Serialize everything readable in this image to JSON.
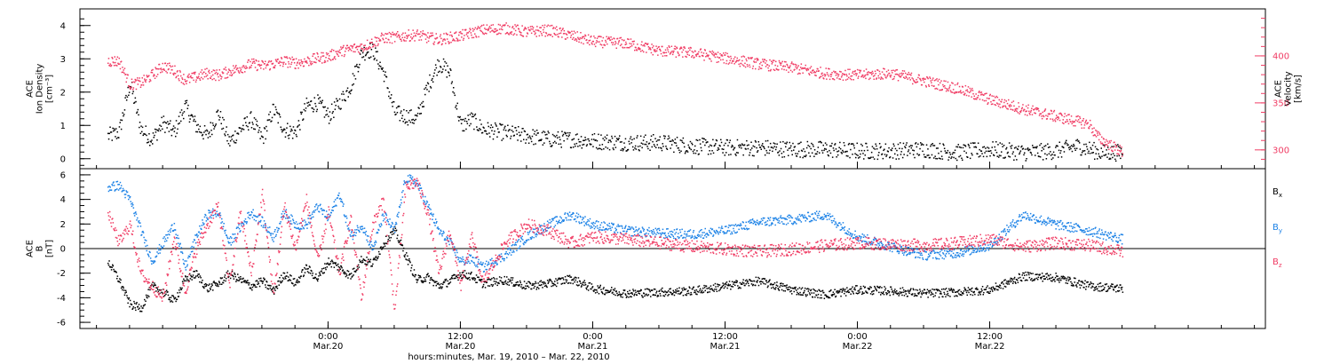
{
  "chart_data": [
    {
      "type": "scatter",
      "panel": "top",
      "ylabel_left": [
        "ACE",
        "Ion Density",
        "[cm⁻³]"
      ],
      "ylabel_right": [
        "ACE",
        "Velocity",
        "[km/s]"
      ],
      "ylim_left": [
        -0.3,
        4.5
      ],
      "ylim_right": [
        280,
        450
      ],
      "yticks_left": [
        "0",
        "1",
        "2",
        "3",
        "4"
      ],
      "yticks_right": [
        "300",
        "350",
        "400"
      ],
      "grid": false,
      "series": [
        {
          "name": "",
          "axis": "left",
          "color": "#000000",
          "x": [
            -20.0,
            -19.0,
            -18.0,
            -17.0,
            -16.0,
            -15.0,
            -14.0,
            -13.0,
            -12.0,
            -11.0,
            -10.0,
            -9.0,
            -8.0,
            -7.0,
            -6.0,
            -5.0,
            -4.0,
            -3.0,
            -2.0,
            -1.0,
            0.0,
            1.0,
            2.0,
            3.0,
            4.0,
            5.0,
            6.0,
            7.0,
            8.0,
            9.0,
            10.0,
            11.0,
            12.0,
            13.0,
            14.0,
            16.0,
            18.0,
            20.0,
            22.0,
            24.0,
            27.0,
            30.0,
            33.0,
            36.0,
            39.0,
            42.0,
            45.0,
            48.0,
            51.0,
            54.0,
            57.0,
            60.0,
            63.0,
            66.0,
            68.0,
            70.0,
            72.0
          ],
          "y": [
            0.7,
            0.8,
            2.3,
            0.9,
            0.6,
            1.1,
            0.8,
            1.6,
            1.0,
            0.7,
            1.4,
            0.5,
            0.9,
            1.2,
            0.6,
            1.5,
            0.9,
            0.8,
            1.6,
            1.7,
            1.3,
            1.7,
            2.2,
            3.2,
            3.3,
            2.6,
            1.4,
            1.3,
            1.2,
            2.2,
            2.9,
            2.6,
            1.0,
            1.2,
            0.9,
            0.8,
            0.7,
            0.6,
            0.6,
            0.55,
            0.5,
            0.5,
            0.4,
            0.35,
            0.35,
            0.3,
            0.3,
            0.25,
            0.25,
            0.3,
            0.2,
            0.3,
            0.2,
            0.25,
            0.4,
            0.2,
            0.2
          ]
        },
        {
          "name": "",
          "axis": "right",
          "color": "#f03c64",
          "x": [
            -20.0,
            -19.0,
            -18.0,
            -17.0,
            -16.0,
            -15.0,
            -14.0,
            -13.0,
            -12.0,
            -11.0,
            -10.0,
            -9.0,
            -8.0,
            -7.0,
            -6.0,
            -5.0,
            -4.0,
            -3.0,
            -2.0,
            -1.0,
            0.0,
            1.0,
            2.0,
            3.0,
            4.0,
            5.0,
            6.0,
            7.0,
            8.0,
            9.0,
            10.0,
            11.0,
            12.0,
            13.0,
            14.0,
            16.0,
            18.0,
            20.0,
            22.0,
            24.0,
            27.0,
            30.0,
            33.0,
            36.0,
            39.0,
            42.0,
            45.0,
            48.0,
            51.0,
            54.0,
            57.0,
            58.0,
            60.0,
            63.0,
            66.0,
            69.0,
            69.5,
            70.0,
            71.0,
            72.0
          ],
          "y": [
            395,
            395,
            370,
            372,
            380,
            390,
            385,
            375,
            378,
            382,
            380,
            384,
            388,
            392,
            390,
            392,
            395,
            393,
            395,
            398,
            400,
            405,
            408,
            410,
            415,
            420,
            420,
            422,
            423,
            420,
            418,
            420,
            422,
            425,
            428,
            430,
            426,
            428,
            422,
            416,
            414,
            406,
            404,
            398,
            392,
            388,
            382,
            380,
            382,
            374,
            366,
            362,
            354,
            344,
            336,
            328,
            318,
            312,
            305,
            298
          ]
        }
      ]
    },
    {
      "type": "scatter",
      "panel": "bottom",
      "ylabel_left": [
        "ACE",
        "B",
        "[nT]"
      ],
      "ylim": [
        -6.5,
        6.5
      ],
      "yticks": [
        "-6",
        "-4",
        "-2",
        "0",
        "2",
        "4",
        "6"
      ],
      "zero_line": true,
      "grid": false,
      "series": [
        {
          "name": "Bx",
          "color": "#000000",
          "x": [
            -20.0,
            -19.0,
            -18.0,
            -17.0,
            -16.0,
            -15.0,
            -14.0,
            -13.0,
            -12.0,
            -11.0,
            -10.0,
            -9.0,
            -8.0,
            -7.0,
            -6.0,
            -5.0,
            -4.0,
            -3.0,
            -2.0,
            -1.0,
            0.0,
            1.0,
            2.0,
            3.0,
            4.0,
            5.0,
            6.0,
            7.0,
            8.0,
            9.0,
            10.0,
            11.0,
            12.0,
            13.0,
            14.0,
            16.0,
            18.0,
            20.0,
            22.0,
            24.0,
            27.0,
            30.0,
            33.0,
            36.0,
            39.0,
            42.0,
            45.0,
            48.0,
            51.0,
            54.0,
            57.0,
            60.0,
            63.0,
            66.0,
            69.0,
            72.0
          ],
          "y": [
            -1.0,
            -2.5,
            -4.5,
            -4.8,
            -3.0,
            -3.5,
            -4.2,
            -2.5,
            -2.0,
            -3.2,
            -2.8,
            -2.0,
            -2.5,
            -3.0,
            -2.6,
            -3.4,
            -2.0,
            -2.8,
            -1.5,
            -2.4,
            -1.0,
            -1.5,
            -2.2,
            -0.8,
            -1.2,
            0.5,
            1.5,
            -0.5,
            -2.5,
            -2.3,
            -3.0,
            -2.6,
            -2.0,
            -2.2,
            -2.8,
            -2.5,
            -3.0,
            -2.8,
            -2.4,
            -3.2,
            -3.6,
            -3.5,
            -3.4,
            -3.0,
            -2.6,
            -3.3,
            -3.7,
            -3.3,
            -3.4,
            -3.6,
            -3.5,
            -3.3,
            -2.2,
            -2.3,
            -3.0,
            -3.2
          ]
        },
        {
          "name": "By",
          "color": "#1c82e6",
          "x": [
            -20.0,
            -19.0,
            -18.0,
            -17.0,
            -16.0,
            -15.0,
            -14.0,
            -13.0,
            -12.0,
            -11.0,
            -10.0,
            -9.0,
            -8.0,
            -7.0,
            -6.0,
            -5.0,
            -4.0,
            -3.0,
            -2.0,
            -1.0,
            0.0,
            1.0,
            2.0,
            3.0,
            4.0,
            5.0,
            6.0,
            7.0,
            8.0,
            9.0,
            10.0,
            11.0,
            12.0,
            13.0,
            14.0,
            16.0,
            18.0,
            20.0,
            22.0,
            24.0,
            27.0,
            30.0,
            33.0,
            36.0,
            39.0,
            42.0,
            45.0,
            48.0,
            51.0,
            54.0,
            57.0,
            60.0,
            63.0,
            66.0,
            69.0,
            72.0
          ],
          "y": [
            5.0,
            5.2,
            4.0,
            1.5,
            -1.0,
            0.5,
            2.0,
            -1.5,
            1.0,
            2.8,
            3.0,
            0.5,
            1.8,
            3.0,
            2.2,
            1.0,
            3.0,
            2.0,
            2.0,
            3.5,
            2.5,
            4.5,
            1.0,
            2.0,
            0.0,
            2.8,
            1.5,
            5.8,
            5.4,
            3.5,
            1.5,
            0.5,
            -1.0,
            -0.8,
            -1.5,
            -0.5,
            1.0,
            2.0,
            2.8,
            2.0,
            1.5,
            1.3,
            1.2,
            1.5,
            2.2,
            2.4,
            2.8,
            1.0,
            0.2,
            -0.5,
            -0.3,
            0.3,
            2.8,
            2.0,
            1.5,
            0.8
          ]
        },
        {
          "name": "Bz",
          "color": "#f03c64",
          "x": [
            -20.0,
            -19.0,
            -18.0,
            -17.0,
            -16.0,
            -15.0,
            -14.0,
            -13.0,
            -12.0,
            -11.0,
            -10.0,
            -9.0,
            -8.0,
            -7.0,
            -6.0,
            -5.0,
            -4.0,
            -3.0,
            -2.0,
            -1.0,
            0.0,
            1.0,
            2.0,
            3.0,
            4.0,
            5.0,
            6.0,
            7.0,
            8.0,
            9.0,
            10.0,
            11.0,
            12.0,
            13.0,
            14.0,
            16.0,
            18.0,
            20.0,
            22.0,
            24.0,
            27.0,
            30.0,
            33.0,
            36.0,
            39.0,
            42.0,
            45.0,
            48.0,
            51.0,
            54.0,
            57.0,
            60.0,
            63.0,
            66.0,
            69.0,
            72.0
          ],
          "y": [
            3.0,
            0.5,
            2.0,
            -2.0,
            -3.0,
            -4.0,
            1.0,
            -3.5,
            0.0,
            2.0,
            3.5,
            -3.0,
            3.0,
            -2.0,
            4.5,
            -3.8,
            3.5,
            0.0,
            4.0,
            -1.0,
            3.0,
            -2.0,
            2.5,
            -4.0,
            2.0,
            4.0,
            -5.0,
            5.0,
            5.5,
            3.0,
            -2.0,
            1.5,
            -3.0,
            1.0,
            -2.8,
            0.5,
            2.0,
            1.5,
            0.5,
            1.0,
            0.8,
            0.5,
            0.2,
            0.0,
            -0.2,
            0.0,
            0.3,
            0.5,
            0.4,
            0.3,
            0.5,
            0.8,
            0.2,
            0.5,
            0.3,
            -0.2
          ]
        }
      ]
    }
  ],
  "legend": [
    {
      "label": "B",
      "sub": "x",
      "color": "#000000"
    },
    {
      "label": "B",
      "sub": "y",
      "color": "#1c82e6"
    },
    {
      "label": "B",
      "sub": "z",
      "color": "#f03c64"
    }
  ],
  "x_axis": {
    "range_hours": [
      -22.5,
      85.0
    ],
    "ticks": [
      {
        "hour": 0,
        "time": "0:00",
        "date": "Mar.20"
      },
      {
        "hour": 12,
        "time": "12:00",
        "date": "Mar.20"
      },
      {
        "hour": 24,
        "time": "0:00",
        "date": "Mar.21"
      },
      {
        "hour": 36,
        "time": "12:00",
        "date": "Mar.21"
      },
      {
        "hour": 48,
        "time": "0:00",
        "date": "Mar.22"
      },
      {
        "hour": 60,
        "time": "12:00",
        "date": "Mar.22"
      }
    ],
    "label": "hours:minutes, Mar. 19, 2010 – Mar. 22, 2010"
  }
}
